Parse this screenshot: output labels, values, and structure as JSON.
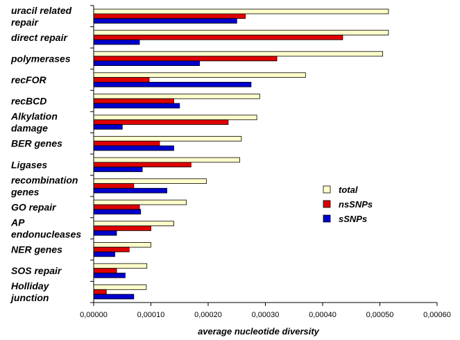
{
  "chart_data": {
    "type": "bar",
    "orientation": "horizontal",
    "categories": [
      [
        "uracil related",
        "repair"
      ],
      [
        "direct repair"
      ],
      [
        "polymerases"
      ],
      [
        "recFOR"
      ],
      [
        "recBCD"
      ],
      [
        "Alkylation",
        "damage"
      ],
      [
        "BER genes"
      ],
      [
        "Ligases"
      ],
      [
        "recombination",
        "genes"
      ],
      [
        "GO repair"
      ],
      [
        "AP",
        "endonucleases"
      ],
      [
        "NER genes"
      ],
      [
        "SOS repair"
      ],
      [
        "Holliday",
        "junction"
      ]
    ],
    "series": [
      {
        "name": "total",
        "color": "#ffffcc",
        "values": [
          0.000515,
          0.000515,
          0.000505,
          0.00037,
          0.00029,
          0.000285,
          0.000258,
          0.000255,
          0.000197,
          0.000162,
          0.00014,
          0.0001,
          9.3e-05,
          9.2e-05
        ]
      },
      {
        "name": "nsSNPs",
        "color": "#dd0000",
        "values": [
          0.000265,
          0.000435,
          0.00032,
          9.7e-05,
          0.00014,
          0.000235,
          0.000115,
          0.00017,
          7e-05,
          8e-05,
          0.0001,
          6.2e-05,
          4e-05,
          2.2e-05
        ]
      },
      {
        "name": "sSNPs",
        "color": "#0000cc",
        "values": [
          0.00025,
          8e-05,
          0.000185,
          0.000275,
          0.00015,
          5e-05,
          0.00014,
          8.5e-05,
          0.000128,
          8.2e-05,
          4e-05,
          3.7e-05,
          5.5e-05,
          7e-05
        ]
      }
    ],
    "xlim": [
      0,
      0.0006
    ],
    "xticks": [
      "0,00000",
      "0,00010",
      "0,00020",
      "0,00030",
      "0,00040",
      "0,00050",
      "0,00060"
    ],
    "xlabel": "average nucleotide diversity",
    "title": "",
    "legend_position": "right",
    "grid": false
  }
}
